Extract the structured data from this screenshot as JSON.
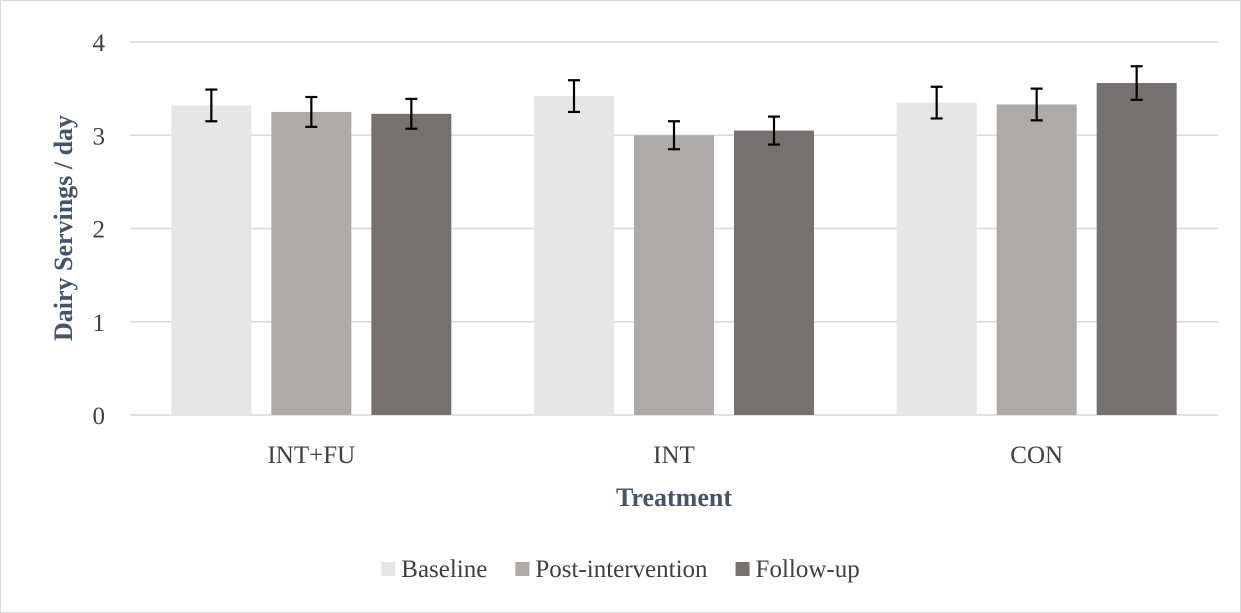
{
  "chart_data": {
    "type": "bar",
    "categories": [
      "INT+FU",
      "INT",
      "CON"
    ],
    "series": [
      {
        "name": "Baseline",
        "values": [
          3.32,
          3.42,
          3.35
        ],
        "error": [
          0.17,
          0.17,
          0.17
        ],
        "color": "#e6e6e6"
      },
      {
        "name": "Post-intervention",
        "values": [
          3.25,
          3.0,
          3.33
        ],
        "error": [
          0.16,
          0.15,
          0.17
        ],
        "color": "#aeaaaa"
      },
      {
        "name": "Follow-up",
        "values": [
          3.23,
          3.05,
          3.56
        ],
        "error": [
          0.16,
          0.15,
          0.18
        ],
        "color": "#767171"
      }
    ],
    "title": "",
    "xlabel": "Treatment",
    "ylabel": "Dairy Servings / day",
    "ylim": [
      0,
      4
    ],
    "yticks": [
      0,
      1,
      2,
      3,
      4
    ],
    "grid": true,
    "legend_position": "bottom",
    "gridline_color": "#d9d9d9",
    "errorbar_color": "#000000"
  }
}
